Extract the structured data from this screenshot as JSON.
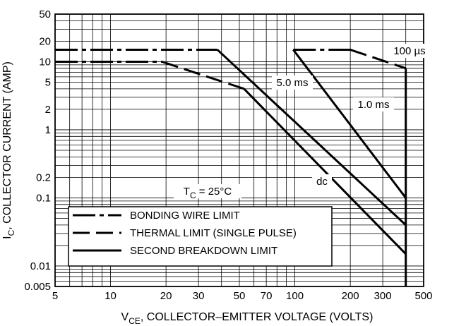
{
  "chart_data": {
    "type": "line",
    "xscale": "log",
    "yscale": "log",
    "xlim": [
      5,
      500
    ],
    "ylim": [
      0.005,
      50
    ],
    "xticks": [
      5,
      10,
      20,
      30,
      50,
      70,
      100,
      200,
      300,
      500
    ],
    "xtick_labels": [
      "5",
      "10",
      "20",
      "30",
      "50",
      "70",
      "100",
      "200",
      "300",
      "500"
    ],
    "yticks": [
      0.005,
      0.01,
      0.1,
      0.2,
      1,
      2,
      5,
      10,
      20,
      50
    ],
    "ytick_labels": [
      "0.005",
      "0.01",
      "0.1",
      "0.2",
      "1",
      "2",
      "5",
      "10",
      "20",
      "50"
    ],
    "xlabel": {
      "pre": "V",
      "sub": "CE",
      "post": ", COLLECTOR–EMITTER VOLTAGE (VOLTS)"
    },
    "ylabel": {
      "pre": "I",
      "sub": "C",
      "post": ", COLLECTOR CURRENT (AMP)"
    },
    "grid": true,
    "annotations": {
      "t100us": "100 µs",
      "t5ms": "5.0 ms",
      "t1ms": "1.0 ms",
      "dc": "dc",
      "temp": {
        "pre": "T",
        "sub": "C",
        "post": " = 25°C"
      }
    },
    "legend": {
      "position": "bottom-left",
      "entries": [
        {
          "label": "BONDING WIRE LIMIT",
          "style": "dash-dot"
        },
        {
          "label": "THERMAL LIMIT (SINGLE PULSE)",
          "style": "dash"
        },
        {
          "label": "SECOND BREAKDOWN LIMIT",
          "style": "solid"
        }
      ]
    },
    "series": [
      {
        "style": "dash-dot",
        "points": [
          [
            5,
            10
          ],
          [
            19,
            10
          ]
        ]
      },
      {
        "style": "dash",
        "points": [
          [
            19,
            10
          ],
          [
            53,
            4
          ]
        ]
      },
      {
        "style": "solid",
        "points": [
          [
            53,
            4
          ],
          [
            400,
            0.015
          ]
        ]
      },
      {
        "style": "dash-dot",
        "points": [
          [
            5,
            15
          ],
          [
            38,
            15
          ]
        ]
      },
      {
        "style": "solid",
        "points": [
          [
            38,
            15
          ],
          [
            400,
            0.04
          ]
        ]
      },
      {
        "style": "dash-dot",
        "points": [
          [
            98,
            15
          ],
          [
            200,
            15
          ]
        ]
      },
      {
        "style": "solid",
        "points": [
          [
            98,
            15
          ],
          [
            400,
            0.1
          ]
        ]
      },
      {
        "style": "dash",
        "points": [
          [
            200,
            15
          ],
          [
            400,
            8
          ]
        ]
      },
      {
        "style": "solid",
        "points": [
          [
            400,
            8
          ],
          [
            400,
            0.005
          ]
        ]
      }
    ]
  }
}
